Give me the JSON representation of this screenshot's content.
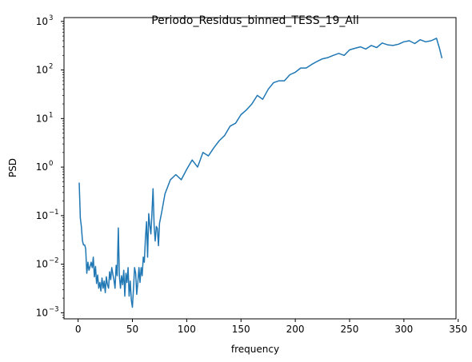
{
  "chart_data": {
    "type": "line",
    "title": "Periodo_Residus_binned_TESS_19_All",
    "xlabel": "frequency",
    "ylabel": "PSD",
    "xlim": [
      -13,
      348
    ],
    "ylim": [
      0.00075,
      1200
    ],
    "yscale": "log",
    "grid": false,
    "line_color": "#1f77b4",
    "x_ticks": [
      0,
      50,
      100,
      150,
      200,
      250,
      300,
      350
    ],
    "x_tick_labels": [
      "0",
      "50",
      "100",
      "150",
      "200",
      "250",
      "300",
      "350"
    ],
    "y_ticks": [
      0.001,
      0.01,
      0.1,
      1,
      10,
      100,
      1000
    ],
    "y_tick_labels": [
      {
        "base": "10",
        "exp": "−3"
      },
      {
        "base": "10",
        "exp": "−2"
      },
      {
        "base": "10",
        "exp": "−1"
      },
      {
        "base": "10",
        "exp": "0"
      },
      {
        "base": "10",
        "exp": "1"
      },
      {
        "base": "10",
        "exp": "2"
      },
      {
        "base": "10",
        "exp": "3"
      }
    ],
    "series": [
      {
        "x": [
          1,
          2,
          3,
          4,
          5,
          6,
          7,
          8,
          9,
          10,
          11,
          12,
          13,
          14,
          15,
          16,
          17,
          18,
          19,
          20,
          21,
          22,
          23,
          24,
          25,
          26,
          27,
          28,
          29,
          30,
          31,
          32,
          33,
          34,
          35,
          36,
          37,
          38,
          39,
          40,
          41,
          42,
          43,
          44,
          45,
          46,
          47,
          48,
          49,
          50,
          51,
          52,
          53,
          54,
          55,
          56,
          57,
          58,
          59,
          60,
          61,
          62,
          63,
          64,
          65,
          66,
          67,
          68,
          69,
          70,
          71,
          72,
          73,
          74,
          75,
          77,
          80,
          85,
          90,
          95,
          100,
          105,
          110,
          115,
          120,
          125,
          130,
          135,
          140,
          145,
          150,
          155,
          160,
          165,
          170,
          175,
          180,
          185,
          190,
          195,
          200,
          205,
          210,
          215,
          220,
          225,
          230,
          235,
          240,
          245,
          250,
          255,
          260,
          265,
          270,
          275,
          280,
          285,
          290,
          295,
          300,
          305,
          310,
          315,
          320,
          325,
          330,
          333,
          335
        ],
        "y": [
          0.48,
          0.09,
          0.06,
          0.03,
          0.025,
          0.025,
          0.021,
          0.0065,
          0.011,
          0.0075,
          0.009,
          0.011,
          0.0085,
          0.014,
          0.0055,
          0.009,
          0.004,
          0.006,
          0.0032,
          0.0042,
          0.0028,
          0.0052,
          0.0032,
          0.0045,
          0.0026,
          0.0055,
          0.0038,
          0.0032,
          0.007,
          0.0048,
          0.0085,
          0.0062,
          0.0048,
          0.0032,
          0.0095,
          0.0058,
          0.056,
          0.0058,
          0.0032,
          0.0058,
          0.0038,
          0.0075,
          0.0022,
          0.0065,
          0.0042,
          0.0085,
          0.0022,
          0.0045,
          0.0018,
          0.0013,
          0.0032,
          0.0085,
          0.0065,
          0.0024,
          0.0042,
          0.0085,
          0.0042,
          0.0085,
          0.0058,
          0.014,
          0.011,
          0.035,
          0.075,
          0.014,
          0.11,
          0.065,
          0.042,
          0.11,
          0.36,
          0.06,
          0.03,
          0.06,
          0.055,
          0.024,
          0.07,
          0.12,
          0.28,
          0.55,
          0.7,
          0.55,
          0.9,
          1.4,
          1.0,
          2.0,
          1.7,
          2.5,
          3.5,
          4.5,
          7.0,
          8.0,
          12.0,
          15.0,
          20.0,
          30.0,
          25.0,
          40.0,
          55.0,
          60.0,
          60.0,
          80.0,
          90.0,
          110.0,
          110.0,
          130.0,
          150.0,
          170.0,
          180.0,
          200.0,
          220.0,
          200.0,
          260.0,
          280.0,
          300.0,
          270.0,
          320.0,
          290.0,
          360.0,
          330.0,
          320.0,
          340.0,
          380.0,
          400.0,
          350.0,
          420.0,
          380.0,
          400.0,
          450.0,
          270.0,
          175.0
        ]
      }
    ]
  }
}
